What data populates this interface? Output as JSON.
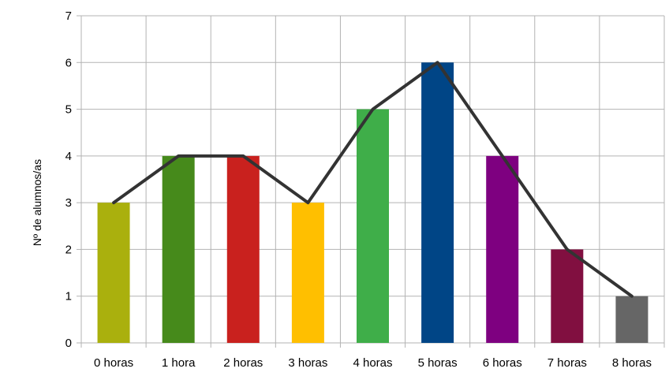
{
  "chart_data": {
    "type": "bar",
    "title": "",
    "xlabel": "",
    "ylabel": "Nº de alumnos/as",
    "ylim": [
      0,
      7
    ],
    "yticks": [
      0,
      1,
      2,
      3,
      4,
      5,
      6,
      7
    ],
    "grid": true,
    "legend": "none",
    "categories": [
      "0 horas",
      "1 hora",
      "2 horas",
      "3 horas",
      "4 horas",
      "5 horas",
      "6 horas",
      "7 horas",
      "8 horas"
    ],
    "values": [
      3,
      4,
      4,
      3,
      5,
      6,
      4,
      2,
      1
    ],
    "bar_colors": [
      "#aab00d",
      "#468a1b",
      "#c9211e",
      "#ffbf00",
      "#3fae49",
      "#004586",
      "#7e0080",
      "#810f40",
      "#666666"
    ],
    "overlay_line": {
      "type": "line",
      "values": [
        3,
        4,
        4,
        3,
        5,
        6,
        4,
        2,
        1
      ],
      "color": "#333333"
    },
    "grid_color": "#b3b3b3",
    "axis_color": "#b3b3b3"
  }
}
